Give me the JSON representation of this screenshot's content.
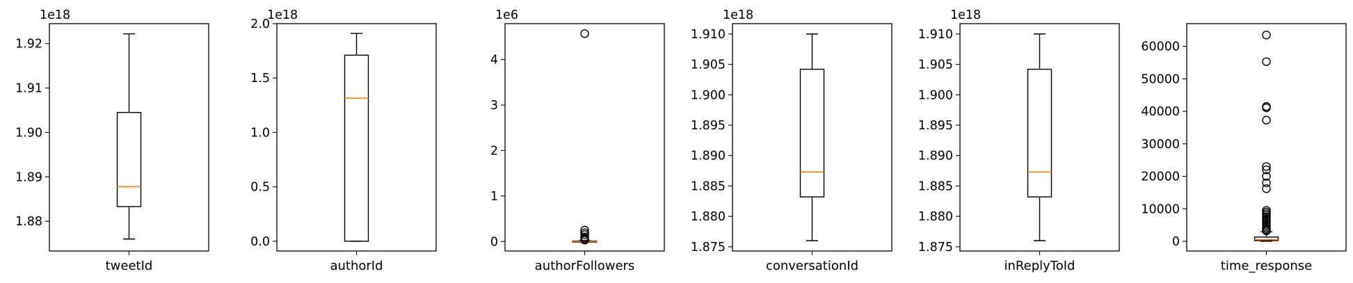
{
  "chart_data": [
    {
      "type": "box",
      "category": "tweetId",
      "exponent_label": "1e18",
      "yticks": [
        "1.88",
        "1.89",
        "1.90",
        "1.91",
        "1.92"
      ],
      "ytick_values": [
        1.88,
        1.89,
        1.9,
        1.91,
        1.92
      ],
      "ylim": [
        1.8733,
        1.9245
      ],
      "stats": {
        "whislo": 1.876,
        "q1": 1.8833,
        "med": 1.8878,
        "q3": 1.9045,
        "whishi": 1.9222
      },
      "outliers": []
    },
    {
      "type": "box",
      "category": "authorId",
      "exponent_label": "1e18",
      "yticks": [
        "0.0",
        "0.5",
        "1.0",
        "1.5",
        "2.0"
      ],
      "ytick_values": [
        0.0,
        0.5,
        1.0,
        1.5,
        2.0
      ],
      "ylim": [
        -0.09,
        2.0
      ],
      "stats": {
        "whislo": 0.0,
        "q1": 0.0,
        "med": 1.315,
        "q3": 1.71,
        "whishi": 1.91
      },
      "outliers": []
    },
    {
      "type": "box",
      "category": "authorFollowers",
      "exponent_label": "1e6",
      "yticks": [
        "0",
        "1",
        "2",
        "3",
        "4"
      ],
      "ytick_values": [
        0,
        1,
        2,
        3,
        4
      ],
      "ylim": [
        -0.21,
        4.79
      ],
      "stats": {
        "whislo": 0.0,
        "q1": 0.0,
        "med": 0.0,
        "q3": 0.01,
        "whishi": 0.02
      },
      "outliers": [
        4.57,
        0.25,
        0.19,
        0.15,
        0.1,
        0.07,
        0.05,
        0.03
      ]
    },
    {
      "type": "box",
      "category": "conversationId",
      "exponent_label": "1e18",
      "yticks": [
        "1.875",
        "1.880",
        "1.885",
        "1.890",
        "1.895",
        "1.900",
        "1.905",
        "1.910"
      ],
      "ytick_values": [
        1.875,
        1.88,
        1.885,
        1.89,
        1.895,
        1.9,
        1.905,
        1.91
      ],
      "ylim": [
        1.8743,
        1.9117
      ],
      "stats": {
        "whislo": 1.876,
        "q1": 1.8832,
        "med": 1.8873,
        "q3": 1.9042,
        "whishi": 1.91
      },
      "outliers": []
    },
    {
      "type": "box",
      "category": "inReplyToId",
      "exponent_label": "1e18",
      "yticks": [
        "1.875",
        "1.880",
        "1.885",
        "1.890",
        "1.895",
        "1.900",
        "1.905",
        "1.910"
      ],
      "ytick_values": [
        1.875,
        1.88,
        1.885,
        1.89,
        1.895,
        1.9,
        1.905,
        1.91
      ],
      "ylim": [
        1.8743,
        1.9117
      ],
      "stats": {
        "whislo": 1.876,
        "q1": 1.8832,
        "med": 1.8873,
        "q3": 1.9042,
        "whishi": 1.91
      },
      "outliers": []
    },
    {
      "type": "box",
      "category": "time_response",
      "exponent_label": "",
      "yticks": [
        "0",
        "10000",
        "20000",
        "30000",
        "40000",
        "50000",
        "60000"
      ],
      "ytick_values": [
        0,
        10000,
        20000,
        30000,
        40000,
        50000,
        60000
      ],
      "ylim": [
        -3000,
        67000
      ],
      "stats": {
        "whislo": 0,
        "q1": 200,
        "med": 500,
        "q3": 1300,
        "whishi": 2900
      },
      "outliers": [
        63500,
        55300,
        41500,
        41100,
        37300,
        23000,
        22000,
        20000,
        18000,
        16200,
        9500,
        9000,
        8500,
        8000,
        7500,
        7000,
        6500,
        6000,
        5500,
        5000,
        4500,
        4000,
        3500,
        3200
      ]
    }
  ]
}
